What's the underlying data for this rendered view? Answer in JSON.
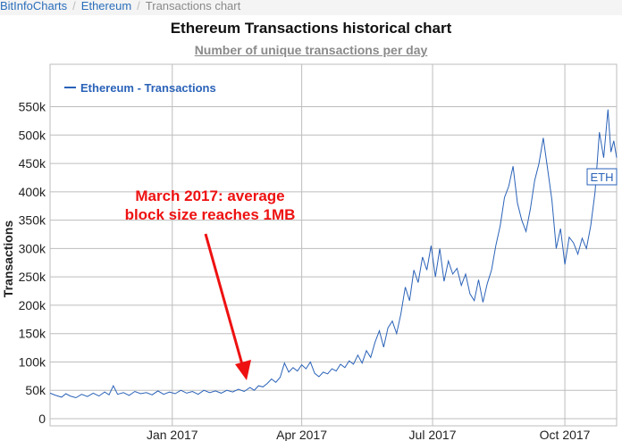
{
  "breadcrumb": {
    "items": [
      "BitInfoCharts",
      "Ethereum"
    ],
    "current": "Transactions chart"
  },
  "page": {
    "title": "Ethereum Transactions historical chart",
    "subtitle": "Number of unique transactions per day"
  },
  "colors": {
    "series": "#2a62b8",
    "annotation": "#ee1111",
    "grid": "#bdbdbd",
    "breadcrumb_link": "#2a6ebb"
  },
  "chart_data": {
    "type": "line",
    "title": "Ethereum Transactions historical chart",
    "subtitle": "Number of unique transactions per day",
    "xlabel": "",
    "ylabel": "Transactions",
    "x_ticks": [
      "Jan 2017",
      "Apr 2017",
      "Jul 2017",
      "Oct 2017"
    ],
    "y_ticks": [
      "0",
      "50k",
      "100k",
      "150k",
      "200k",
      "250k",
      "300k",
      "350k",
      "400k",
      "450k",
      "500k",
      "550k"
    ],
    "ylim": [
      0,
      565000
    ],
    "xlim": [
      "2016-10-08",
      "2017-11-06"
    ],
    "grid": true,
    "legend": {
      "position": "top-left",
      "entries": [
        "Ethereum - Transactions"
      ]
    },
    "end_label": "ETH",
    "annotation": {
      "text_lines": [
        "March 2017: average",
        "block size reaches 1MB"
      ],
      "points_to": "2017-03-09"
    },
    "series": [
      {
        "name": "Ethereum - Transactions",
        "points": [
          [
            "2016-10-08",
            45000
          ],
          [
            "2016-10-12",
            41000
          ],
          [
            "2016-10-16",
            38000
          ],
          [
            "2016-10-19",
            44000
          ],
          [
            "2016-10-22",
            40000
          ],
          [
            "2016-10-26",
            37000
          ],
          [
            "2016-10-30",
            43000
          ],
          [
            "2016-11-03",
            39000
          ],
          [
            "2016-11-07",
            45000
          ],
          [
            "2016-11-11",
            40000
          ],
          [
            "2016-11-15",
            47000
          ],
          [
            "2016-11-18",
            42000
          ],
          [
            "2016-11-21",
            58000
          ],
          [
            "2016-11-24",
            43000
          ],
          [
            "2016-11-28",
            46000
          ],
          [
            "2016-12-02",
            41000
          ],
          [
            "2016-12-06",
            48000
          ],
          [
            "2016-12-10",
            44000
          ],
          [
            "2016-12-14",
            46000
          ],
          [
            "2016-12-18",
            42000
          ],
          [
            "2016-12-22",
            49000
          ],
          [
            "2016-12-26",
            43000
          ],
          [
            "2016-12-30",
            47000
          ],
          [
            "2017-01-03",
            44000
          ],
          [
            "2017-01-07",
            50000
          ],
          [
            "2017-01-11",
            45000
          ],
          [
            "2017-01-15",
            48000
          ],
          [
            "2017-01-19",
            43000
          ],
          [
            "2017-01-23",
            50000
          ],
          [
            "2017-01-27",
            46000
          ],
          [
            "2017-01-31",
            49000
          ],
          [
            "2017-02-04",
            45000
          ],
          [
            "2017-02-08",
            50000
          ],
          [
            "2017-02-12",
            47000
          ],
          [
            "2017-02-16",
            52000
          ],
          [
            "2017-02-20",
            48000
          ],
          [
            "2017-02-24",
            55000
          ],
          [
            "2017-02-27",
            50000
          ],
          [
            "2017-03-02",
            58000
          ],
          [
            "2017-03-05",
            56000
          ],
          [
            "2017-03-08",
            62000
          ],
          [
            "2017-03-11",
            70000
          ],
          [
            "2017-03-14",
            64000
          ],
          [
            "2017-03-17",
            73000
          ],
          [
            "2017-03-20",
            98000
          ],
          [
            "2017-03-23",
            82000
          ],
          [
            "2017-03-26",
            90000
          ],
          [
            "2017-03-29",
            84000
          ],
          [
            "2017-04-01",
            95000
          ],
          [
            "2017-04-04",
            88000
          ],
          [
            "2017-04-07",
            100000
          ],
          [
            "2017-04-10",
            80000
          ],
          [
            "2017-04-13",
            74000
          ],
          [
            "2017-04-16",
            82000
          ],
          [
            "2017-04-19",
            79000
          ],
          [
            "2017-04-22",
            88000
          ],
          [
            "2017-04-25",
            84000
          ],
          [
            "2017-04-28",
            96000
          ],
          [
            "2017-05-01",
            90000
          ],
          [
            "2017-05-04",
            102000
          ],
          [
            "2017-05-07",
            96000
          ],
          [
            "2017-05-10",
            112000
          ],
          [
            "2017-05-13",
            98000
          ],
          [
            "2017-05-16",
            120000
          ],
          [
            "2017-05-19",
            108000
          ],
          [
            "2017-05-22",
            135000
          ],
          [
            "2017-05-25",
            155000
          ],
          [
            "2017-05-28",
            126000
          ],
          [
            "2017-05-31",
            160000
          ],
          [
            "2017-06-03",
            172000
          ],
          [
            "2017-06-06",
            150000
          ],
          [
            "2017-06-09",
            185000
          ],
          [
            "2017-06-12",
            232000
          ],
          [
            "2017-06-15",
            208000
          ],
          [
            "2017-06-18",
            262000
          ],
          [
            "2017-06-21",
            240000
          ],
          [
            "2017-06-24",
            285000
          ],
          [
            "2017-06-27",
            262000
          ],
          [
            "2017-06-30",
            305000
          ],
          [
            "2017-07-03",
            250000
          ],
          [
            "2017-07-06",
            300000
          ],
          [
            "2017-07-09",
            242000
          ],
          [
            "2017-07-12",
            278000
          ],
          [
            "2017-07-15",
            255000
          ],
          [
            "2017-07-18",
            265000
          ],
          [
            "2017-07-21",
            235000
          ],
          [
            "2017-07-24",
            255000
          ],
          [
            "2017-07-27",
            220000
          ],
          [
            "2017-07-30",
            208000
          ],
          [
            "2017-08-02",
            245000
          ],
          [
            "2017-08-05",
            205000
          ],
          [
            "2017-08-08",
            238000
          ],
          [
            "2017-08-11",
            262000
          ],
          [
            "2017-08-14",
            305000
          ],
          [
            "2017-08-17",
            340000
          ],
          [
            "2017-08-20",
            390000
          ],
          [
            "2017-08-23",
            410000
          ],
          [
            "2017-08-26",
            445000
          ],
          [
            "2017-08-29",
            380000
          ],
          [
            "2017-09-01",
            350000
          ],
          [
            "2017-09-04",
            330000
          ],
          [
            "2017-09-07",
            370000
          ],
          [
            "2017-09-10",
            420000
          ],
          [
            "2017-09-13",
            450000
          ],
          [
            "2017-09-16",
            495000
          ],
          [
            "2017-09-19",
            440000
          ],
          [
            "2017-09-22",
            385000
          ],
          [
            "2017-09-25",
            300000
          ],
          [
            "2017-09-28",
            335000
          ],
          [
            "2017-10-01",
            272000
          ],
          [
            "2017-10-04",
            320000
          ],
          [
            "2017-10-07",
            310000
          ],
          [
            "2017-10-10",
            290000
          ],
          [
            "2017-10-13",
            318000
          ],
          [
            "2017-10-16",
            300000
          ],
          [
            "2017-10-19",
            340000
          ],
          [
            "2017-10-22",
            400000
          ],
          [
            "2017-10-25",
            505000
          ],
          [
            "2017-10-28",
            460000
          ],
          [
            "2017-10-31",
            545000
          ],
          [
            "2017-11-02",
            470000
          ],
          [
            "2017-11-04",
            490000
          ],
          [
            "2017-11-06",
            460000
          ]
        ]
      }
    ]
  }
}
